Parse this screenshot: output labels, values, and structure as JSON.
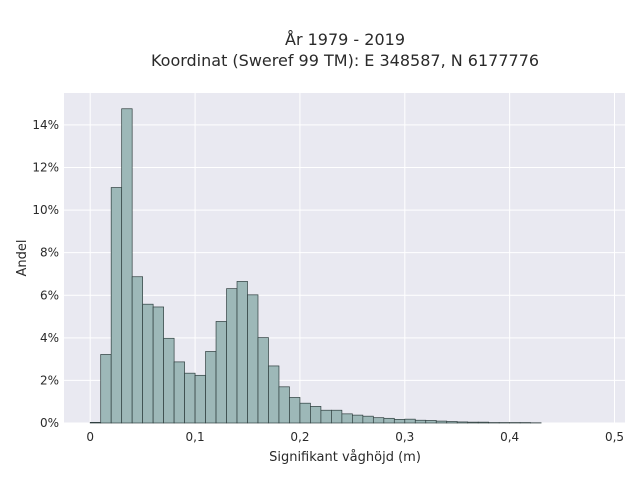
{
  "chart_data": {
    "type": "bar",
    "title_line1": "År 1979 - 2019",
    "title_line2": "Koordinat (Sweref 99 TM): E 348587, N 6177776",
    "xlabel": "Signifikant våghöjd (m)",
    "ylabel": "Andel",
    "xlim": [
      -0.025,
      0.51
    ],
    "ylim": [
      0,
      0.155
    ],
    "bin_width": 0.01,
    "bin_start": 0.0,
    "values": [
      0.0003,
      0.0322,
      0.1106,
      0.1476,
      0.0687,
      0.0558,
      0.0545,
      0.0398,
      0.0287,
      0.0234,
      0.0224,
      0.0336,
      0.0477,
      0.0631,
      0.0665,
      0.0602,
      0.0401,
      0.0268,
      0.017,
      0.012,
      0.0093,
      0.0078,
      0.006,
      0.006,
      0.0043,
      0.0037,
      0.0032,
      0.0025,
      0.0022,
      0.0017,
      0.0018,
      0.0013,
      0.0012,
      0.0009,
      0.0007,
      0.0005,
      0.0004,
      0.0004,
      0.0002,
      0.0002,
      0.0002,
      0.0002,
      0.0001
    ],
    "xticks": [
      0,
      0.1,
      0.2,
      0.3,
      0.4,
      0.5
    ],
    "xtick_labels": [
      "0",
      "0,1",
      "0,2",
      "0,3",
      "0,4",
      "0,5"
    ],
    "yticks": [
      0,
      0.02,
      0.04,
      0.06,
      0.08,
      0.1,
      0.12,
      0.14
    ],
    "ytick_labels": [
      "0%",
      "2%",
      "4%",
      "6%",
      "8%",
      "10%",
      "12%",
      "14%"
    ],
    "grid": true,
    "bar_color": "#9db8b8",
    "bar_edge_color": "#2f3f3f",
    "plot_background": "#e9e9f1",
    "grid_color": "#ffffff"
  }
}
